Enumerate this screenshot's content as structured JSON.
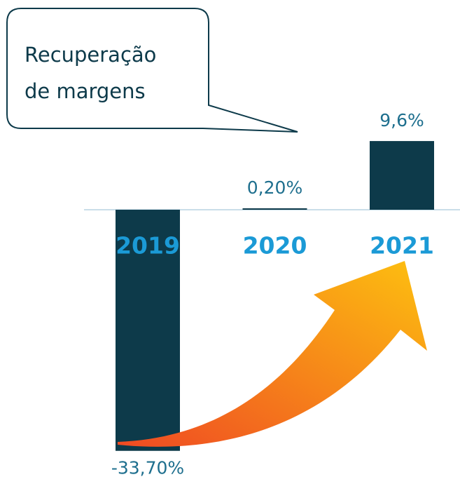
{
  "chart_data": {
    "type": "bar",
    "annotation_lines": [
      "Recuperação",
      "de margens"
    ],
    "categories": [
      "2019",
      "2020",
      "2021"
    ],
    "values": [
      -33.7,
      0.2,
      9.6
    ],
    "value_labels": [
      "-33,70%",
      "0,20%",
      "9,6%"
    ],
    "color": "#0d3a4a"
  }
}
